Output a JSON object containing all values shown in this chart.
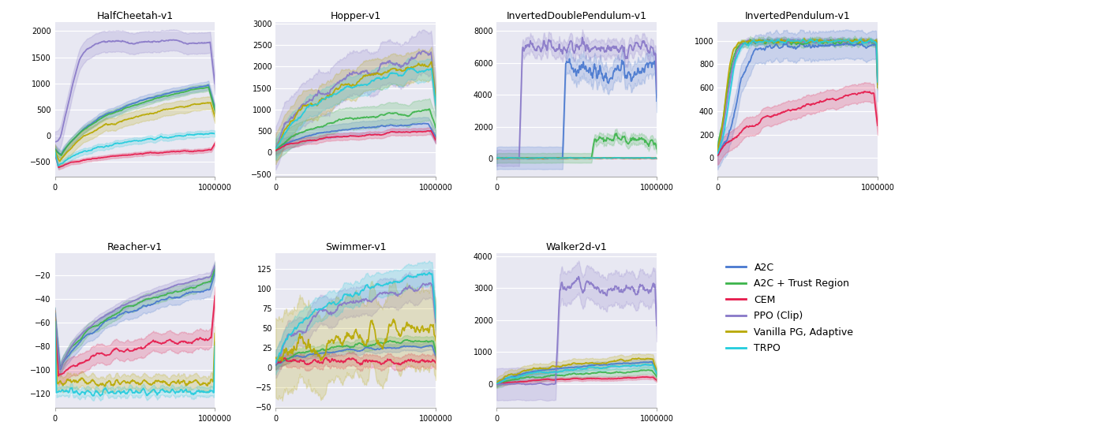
{
  "envs": [
    "HalfCheetah-v1",
    "Hopper-v1",
    "InvertedDoublePendulum-v1",
    "InvertedPendulum-v1",
    "Reacher-v1",
    "Swimmer-v1",
    "Walker2d-v1"
  ],
  "algorithms": [
    "A2C",
    "A2C + Trust Region",
    "CEM",
    "PPO (Clip)",
    "Vanilla PG, Adaptive",
    "TRPO"
  ],
  "colors": {
    "A2C": "#4878cf",
    "A2C + Trust Region": "#3cb44b",
    "CEM": "#e6194B",
    "PPO (Clip)": "#8878c8",
    "Vanilla PG, Adaptive": "#b8a800",
    "TRPO": "#22ccdd"
  },
  "background_color": "#e8e8f2",
  "n_steps": 300,
  "x_max": 1000000,
  "figsize": [
    13.9,
    5.68
  ],
  "dpi": 100,
  "title_fontsize": 9,
  "tick_fontsize": 7,
  "legend_fontsize": 9
}
